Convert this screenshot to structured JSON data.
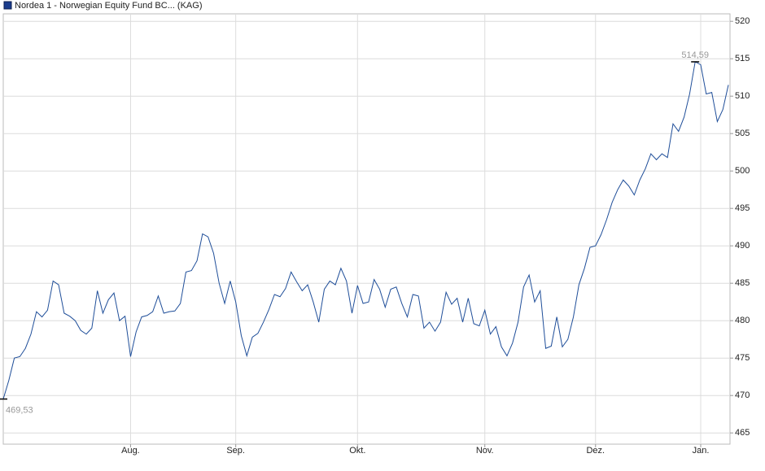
{
  "chart_data": {
    "type": "line",
    "series": [
      {
        "name": "Nordea 1 - Norwegian Equity Fund BC... (KAG)",
        "color": "#1f4e99",
        "values": [
          469.53,
          472,
          475,
          475.2,
          476.3,
          478.2,
          481.2,
          480.5,
          481.4,
          485.3,
          484.8,
          481,
          480.6,
          480,
          478.7,
          478.2,
          479,
          484,
          481,
          482.8,
          483.7,
          480,
          480.6,
          475.2,
          478.5,
          480.5,
          480.7,
          481.2,
          483.3,
          481,
          481.2,
          481.3,
          482.3,
          486.5,
          486.7,
          488,
          491.6,
          491.2,
          489,
          485,
          482.3,
          485.3,
          482.5,
          478,
          475.3,
          477.8,
          478.3,
          479.8,
          481.5,
          483.5,
          483.2,
          484.3,
          486.5,
          485.2,
          484,
          484.8,
          482.5,
          479.8,
          484.2,
          485.3,
          484.8,
          487,
          485.3,
          481,
          484.7,
          482.3,
          482.5,
          485.5,
          484.2,
          481.8,
          484.2,
          484.5,
          482.3,
          480.5,
          483.5,
          483.3,
          479,
          479.8,
          478.6,
          479.8,
          483.8,
          482.2,
          483,
          479.8,
          483,
          479.6,
          479.3,
          481.4,
          478.2,
          479.2,
          476.5,
          475.3,
          477,
          479.8,
          484.5,
          486.1,
          482.5,
          484,
          476.3,
          476.6,
          480.5,
          476.5,
          477.5,
          480.5,
          484.8,
          487,
          489.8,
          490,
          491.5,
          493.5,
          495.8,
          497.5,
          498.8,
          498,
          496.8,
          498.8,
          500.3,
          502.3,
          501.5,
          502.3,
          501.8,
          506.3,
          505.3,
          507.2,
          510.3,
          514.59,
          514.2,
          510.3,
          510.5,
          506.6,
          508.2,
          511.5
        ]
      }
    ],
    "min_label": "469,53",
    "max_label": "514,59",
    "xlim": [
      0,
      131
    ],
    "xticks": [
      {
        "value": 23,
        "label": "Aug."
      },
      {
        "value": 42,
        "label": "Sep."
      },
      {
        "value": 64,
        "label": "Okt."
      },
      {
        "value": 87,
        "label": "Nov."
      },
      {
        "value": 107,
        "label": "Dez."
      },
      {
        "value": 126,
        "label": "Jan."
      }
    ],
    "ylim": [
      463.5,
      521
    ],
    "yticks": [
      465,
      470,
      475,
      480,
      485,
      490,
      495,
      500,
      505,
      510,
      515,
      520
    ],
    "grid": true
  }
}
